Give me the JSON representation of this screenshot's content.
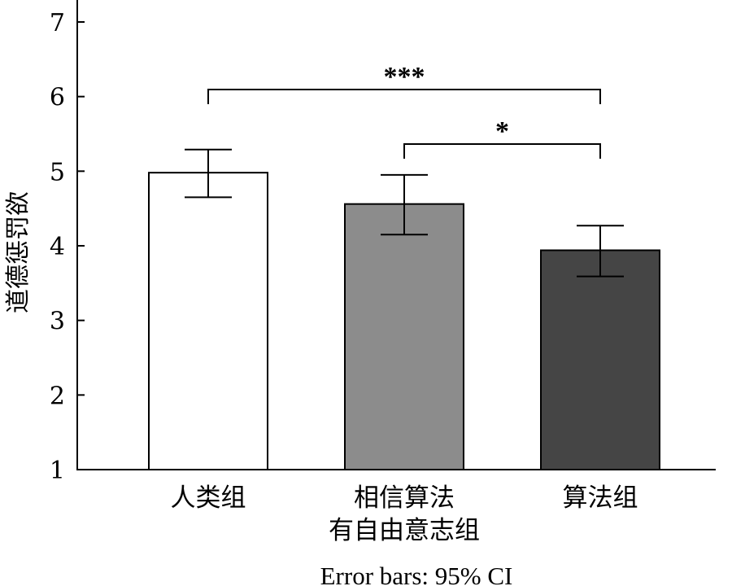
{
  "chart_data": {
    "type": "bar",
    "categories": [
      [
        "人类组"
      ],
      [
        "相信算法",
        "有自由意志组"
      ],
      [
        "算法组"
      ]
    ],
    "values": [
      4.98,
      4.56,
      3.94
    ],
    "ci_low": [
      4.65,
      4.15,
      3.59
    ],
    "ci_high": [
      5.29,
      4.95,
      4.27
    ],
    "bar_colors": [
      "#ffffff",
      "#8c8c8c",
      "#454545"
    ],
    "ylabel": "道德惩罚欲",
    "ylim": [
      1,
      7
    ],
    "yticks": [
      "1",
      "2",
      "3",
      "4",
      "5",
      "6",
      "7"
    ],
    "footnote": "Error bars: 95% CI",
    "significance": [
      {
        "from": 0,
        "to": 2,
        "label": "***"
      },
      {
        "from": 1,
        "to": 2,
        "label": "*"
      }
    ]
  }
}
